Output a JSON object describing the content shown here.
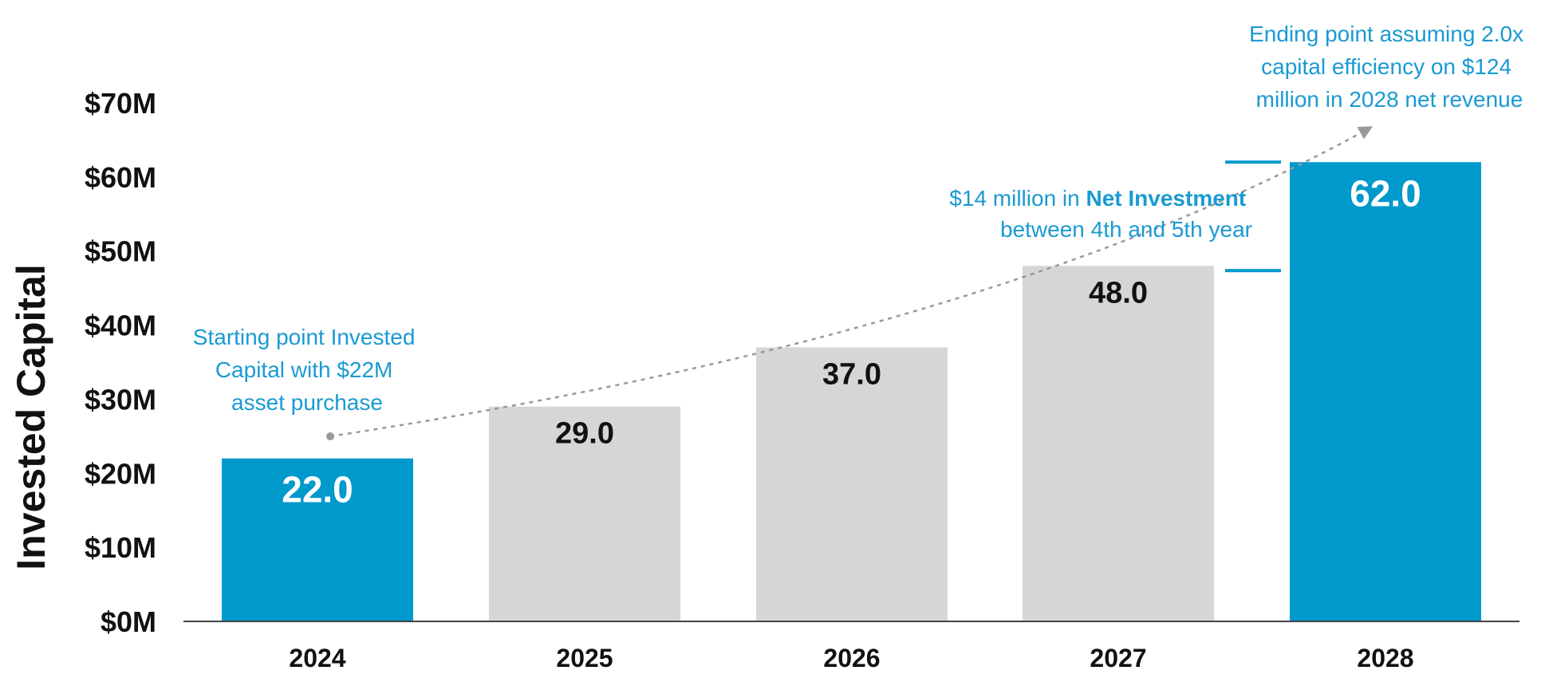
{
  "chart_data": {
    "type": "bar",
    "categories": [
      "2024",
      "2025",
      "2026",
      "2027",
      "2028"
    ],
    "values": [
      22.0,
      29.0,
      37.0,
      48.0,
      62.0
    ],
    "value_labels": [
      "22.0",
      "29.0",
      "37.0",
      "48.0",
      "62.0"
    ],
    "highlighted": [
      true,
      false,
      false,
      false,
      true
    ],
    "ylabel": "Invested Capital",
    "ylim": [
      0,
      70
    ],
    "yticks": [
      {
        "value": 0,
        "label": "$0M"
      },
      {
        "value": 10,
        "label": "$10M"
      },
      {
        "value": 20,
        "label": "$20M"
      },
      {
        "value": 30,
        "label": "$30M"
      },
      {
        "value": 40,
        "label": "$40M"
      },
      {
        "value": 50,
        "label": "$50M"
      },
      {
        "value": 60,
        "label": "$60M"
      },
      {
        "value": 70,
        "label": "$70M"
      }
    ],
    "grid": false,
    "annotations": {
      "start": [
        "Starting point Invested",
        "Capital with $22M",
        "asset purchase"
      ],
      "net_investment": {
        "line1_prefix": "$14 million in ",
        "line1_bold": "Net Investment",
        "line2": "between 4th and 5th year"
      },
      "end": [
        "Ending point assuming 2.0x",
        "capital efficiency on $124",
        "million in 2028 net revenue"
      ]
    },
    "colors": {
      "highlight": "#0099cc",
      "normal": "#d6d6d6",
      "annotation": "#1a9ad2",
      "highlight_label": "#ffffff",
      "normal_label": "#111111",
      "trend": "#999999"
    }
  }
}
